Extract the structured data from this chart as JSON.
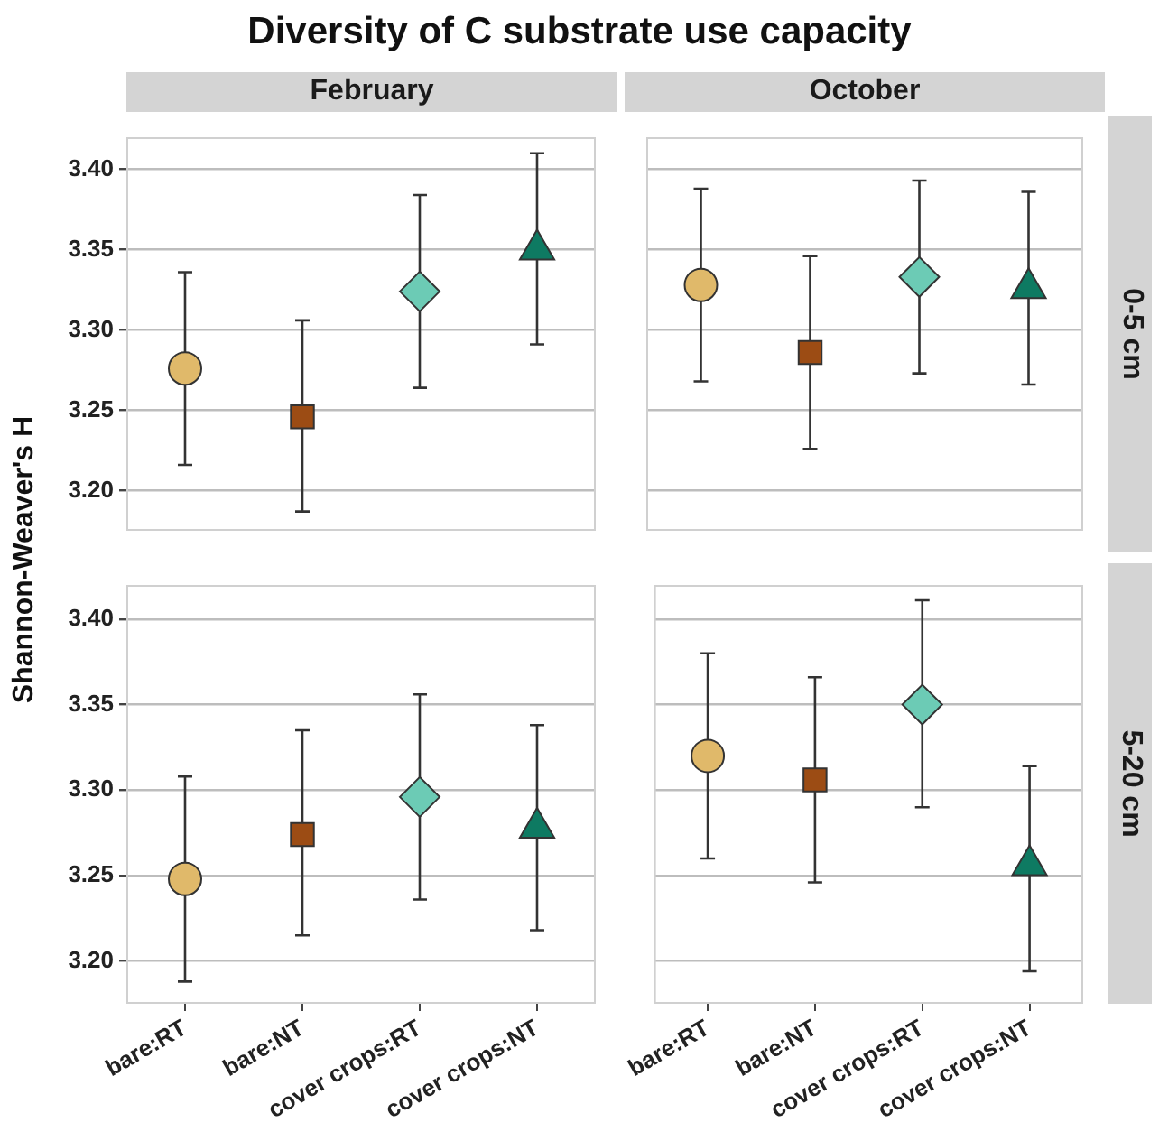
{
  "chart_data": [
    {
      "type": "scatter",
      "title": "Diversity of C substrate use capacity",
      "subtitle": "February",
      "ylabel": "Shannon-Weaver's H",
      "categories": [
        "bare:RT",
        "bare:NT",
        "cover crops:RT",
        "cover crops:NT"
      ],
      "ylim": [
        3.175,
        3.42
      ],
      "yticks": [
        {
          "value": 3.2,
          "label": "3.20"
        },
        {
          "value": 3.25,
          "label": "3.25"
        },
        {
          "value": 3.3,
          "label": "3.30"
        },
        {
          "value": 3.35,
          "label": "3.35"
        },
        {
          "value": 3.4,
          "label": "3.40"
        }
      ],
      "grid": "y",
      "tick_labels": "y",
      "series": [
        {
          "x": [
            "bare:RT"
          ],
          "values": [
            3.276
          ],
          "errors": [
            [
              3.216,
              3.336
            ]
          ],
          "color": "#e0b96a",
          "marker": "circle"
        },
        {
          "x": [
            "bare:NT"
          ],
          "values": [
            3.246
          ],
          "errors": [
            [
              3.187,
              3.306
            ]
          ],
          "color": "#9c4c14",
          "marker": "square"
        },
        {
          "x": [
            "cover crops:RT"
          ],
          "values": [
            3.324
          ],
          "errors": [
            [
              3.264,
              3.384
            ]
          ],
          "color": "#6ccbb5",
          "marker": "diamond"
        },
        {
          "x": [
            "cover crops:NT"
          ],
          "values": [
            3.35
          ],
          "errors": [
            [
              3.291,
              3.41
            ]
          ],
          "color": "#0e7a62",
          "marker": "triangle"
        }
      ]
    },
    {
      "type": "scatter",
      "subtitle": "October",
      "y2label": "0-5 cm",
      "categories": [
        "bare:RT",
        "bare:NT",
        "cover crops:RT",
        "cover crops:NT"
      ],
      "ylim": [
        3.175,
        3.42
      ],
      "yticks": [
        3.2,
        3.25,
        3.3,
        3.35,
        3.4
      ],
      "grid": "y",
      "tick_labels": false,
      "series": [
        {
          "x": [
            "bare:RT"
          ],
          "values": [
            3.328
          ],
          "errors": [
            [
              3.268,
              3.388
            ]
          ],
          "color": "#e0b96a",
          "marker": "circle"
        },
        {
          "x": [
            "bare:NT"
          ],
          "values": [
            3.286
          ],
          "errors": [
            [
              3.226,
              3.346
            ]
          ],
          "color": "#9c4c14",
          "marker": "square"
        },
        {
          "x": [
            "cover crops:RT"
          ],
          "values": [
            3.333
          ],
          "errors": [
            [
              3.273,
              3.393
            ]
          ],
          "color": "#6ccbb5",
          "marker": "diamond"
        },
        {
          "x": [
            "cover crops:NT"
          ],
          "values": [
            3.326
          ],
          "errors": [
            [
              3.266,
              3.386
            ]
          ],
          "color": "#0e7a62",
          "marker": "triangle"
        }
      ]
    },
    {
      "type": "scatter",
      "categories": [
        "bare:RT",
        "bare:NT",
        "cover crops:RT",
        "cover crops:NT"
      ],
      "ylim": [
        3.175,
        3.42
      ],
      "yticks": [
        {
          "value": 3.2,
          "label": "3.20"
        },
        {
          "value": 3.25,
          "label": "3.25"
        },
        {
          "value": 3.3,
          "label": "3.30"
        },
        {
          "value": 3.35,
          "label": "3.35"
        },
        {
          "value": 3.4,
          "label": "3.40"
        }
      ],
      "grid": "y",
      "series": [
        {
          "x": [
            "bare:RT"
          ],
          "values": [
            3.248
          ],
          "errors": [
            [
              3.188,
              3.308
            ]
          ],
          "color": "#e0b96a",
          "marker": "circle"
        },
        {
          "x": [
            "bare:NT"
          ],
          "values": [
            3.274
          ],
          "errors": [
            [
              3.215,
              3.335
            ]
          ],
          "color": "#9c4c14",
          "marker": "square"
        },
        {
          "x": [
            "cover crops:RT"
          ],
          "values": [
            3.296
          ],
          "errors": [
            [
              3.236,
              3.356
            ]
          ],
          "color": "#6ccbb5",
          "marker": "diamond"
        },
        {
          "x": [
            "cover crops:NT"
          ],
          "values": [
            3.278
          ],
          "errors": [
            [
              3.218,
              3.338
            ]
          ],
          "color": "#0e7a62",
          "marker": "triangle"
        }
      ]
    },
    {
      "type": "scatter",
      "y2label": "5-20 cm",
      "categories": [
        "bare:RT",
        "bare:NT",
        "cover crops:RT",
        "cover crops:NT"
      ],
      "ylim": [
        3.175,
        3.42
      ],
      "yticks": [
        3.2,
        3.25,
        3.3,
        3.35,
        3.4
      ],
      "grid": "y",
      "tick_labels": "x",
      "series": [
        {
          "x": [
            "bare:RT"
          ],
          "values": [
            3.32
          ],
          "errors": [
            [
              3.26,
              3.38
            ]
          ],
          "color": "#e0b96a",
          "marker": "circle"
        },
        {
          "x": [
            "bare:NT"
          ],
          "values": [
            3.306
          ],
          "errors": [
            [
              3.246,
              3.366
            ]
          ],
          "color": "#9c4c14",
          "marker": "square"
        },
        {
          "x": [
            "cover crops:RT"
          ],
          "values": [
            3.35
          ],
          "errors": [
            [
              3.29,
              3.411
            ]
          ],
          "color": "#6ccbb5",
          "marker": "diamond"
        },
        {
          "x": [
            "cover crops:NT"
          ],
          "values": [
            3.256
          ],
          "errors": [
            [
              3.194,
              3.314
            ]
          ],
          "color": "#0e7a62",
          "marker": "triangle"
        }
      ]
    }
  ]
}
